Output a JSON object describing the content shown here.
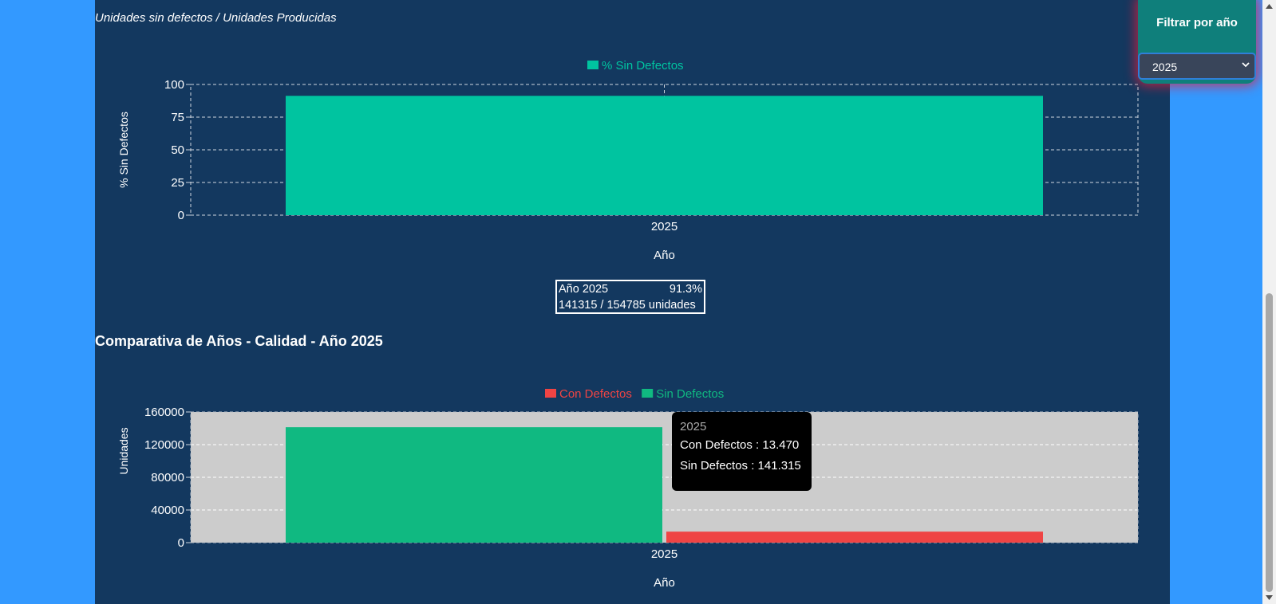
{
  "colors": {
    "page_bg": "#3399ff",
    "panel_bg": "#13385f",
    "pct_bar": "#00c4a0",
    "sin_defectos": "#10b981",
    "con_defectos": "#ef4444",
    "plot_bg_2": "#cccccc"
  },
  "header": {
    "subtitle": "Unidades sin defectos / Unidades Producidas"
  },
  "chart1_info": {
    "year_label": "Año 2025",
    "percent": "91.3%",
    "units": "141315 / 154785 unidades"
  },
  "section2": {
    "title": "Comparativa de Años - Calidad - Año 2025"
  },
  "tooltip": {
    "title": "2025",
    "line1": "Con Defectos : 13.470",
    "line2": "Sin Defectos : 141.315"
  },
  "filter": {
    "title": "Filtrar por año",
    "selected": "2025"
  },
  "chart_data": [
    {
      "type": "bar",
      "categories": [
        "2025"
      ],
      "series": [
        {
          "name": "% Sin Defectos",
          "values": [
            91.3
          ]
        }
      ],
      "xlabel": "Año",
      "ylabel": "% Sin Defectos",
      "ylim": [
        0,
        100
      ],
      "yticks": [
        0,
        25,
        50,
        75,
        100
      ],
      "grid": true,
      "legend": "top-center"
    },
    {
      "type": "bar",
      "categories": [
        "2025"
      ],
      "series": [
        {
          "name": "Con Defectos",
          "values": [
            13470
          ]
        },
        {
          "name": "Sin Defectos",
          "values": [
            141315
          ]
        }
      ],
      "xlabel": "Año",
      "ylabel": "Unidades",
      "ylim": [
        0,
        160000
      ],
      "yticks": [
        0,
        40000,
        80000,
        120000,
        160000
      ],
      "grid": true,
      "legend": "top-center"
    }
  ]
}
